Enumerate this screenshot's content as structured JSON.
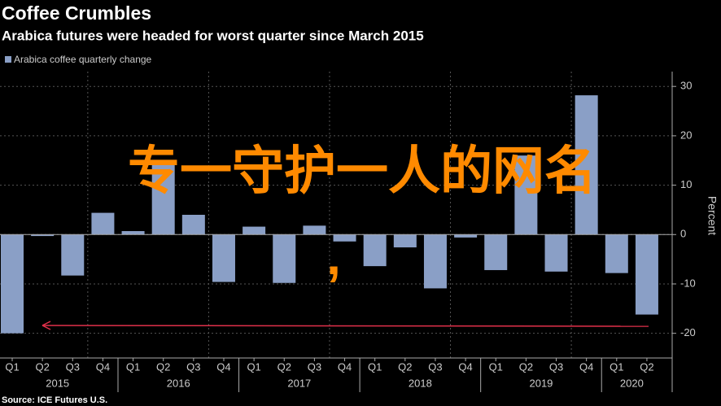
{
  "chart_data": {
    "type": "bar",
    "title": "Coffee Crumbles",
    "subtitle": "Arabica futures were headed for worst quarter since March 2015",
    "y_axis_label": "Percent",
    "source": "Source: ICE Futures U.S.",
    "overlay_text": [
      "专一守护一人的网名",
      ","
    ],
    "categories": [
      "Q1",
      "Q2",
      "Q3",
      "Q4",
      "Q1",
      "Q2",
      "Q3",
      "Q4",
      "Q1",
      "Q2",
      "Q3",
      "Q4",
      "Q1",
      "Q2",
      "Q3",
      "Q4",
      "Q1",
      "Q2",
      "Q3",
      "Q4",
      "Q1",
      "Q2"
    ],
    "years": [
      "2015",
      "2016",
      "2017",
      "2018",
      "2019",
      "2020"
    ],
    "series": [
      {
        "name": "Arabica coffee quarterly change",
        "color": "#8a9fc6",
        "values": [
          -20,
          -0.3,
          -8.3,
          4.4,
          0.7,
          14.2,
          4,
          -9.6,
          1.6,
          -9.8,
          1.8,
          -1.4,
          -6.4,
          -2.6,
          -10.9,
          -0.6,
          -7.2,
          16,
          -7.5,
          28.2,
          -7.8,
          -16.2
        ]
      }
    ],
    "ylim": [
      -25,
      33
    ],
    "yticks": [
      -20,
      -10,
      0,
      10,
      20,
      30
    ],
    "grid": true
  }
}
